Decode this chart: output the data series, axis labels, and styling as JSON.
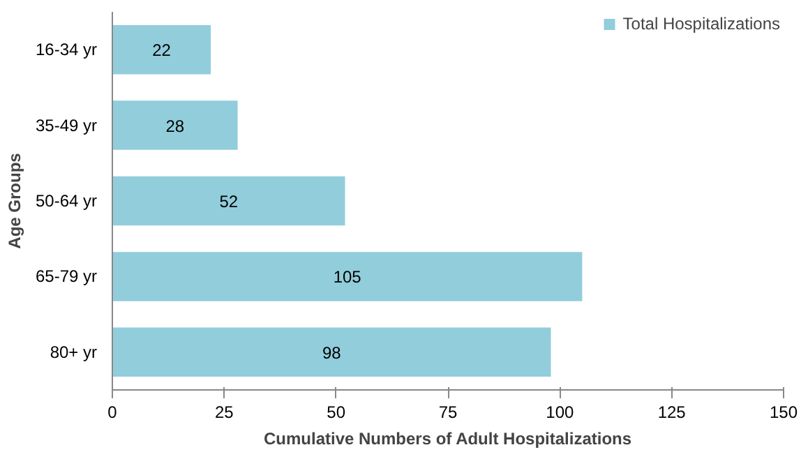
{
  "chart_data": {
    "type": "bar",
    "orientation": "horizontal",
    "xlabel": "Cumulative Numbers of Adult Hospitalizations",
    "ylabel": "Age Groups",
    "categories": [
      "16-34 yr",
      "35-49 yr",
      "50-64 yr",
      "65-79 yr",
      "80+ yr"
    ],
    "series": [
      {
        "name": "Total Hospitalizations",
        "color": "#92cddc",
        "values": [
          22,
          28,
          52,
          105,
          98
        ]
      }
    ],
    "xlim": [
      0,
      150
    ],
    "xticks": [
      0,
      25,
      50,
      75,
      100,
      125,
      150
    ],
    "grid": false,
    "legend": "top right",
    "data_labels": true
  }
}
